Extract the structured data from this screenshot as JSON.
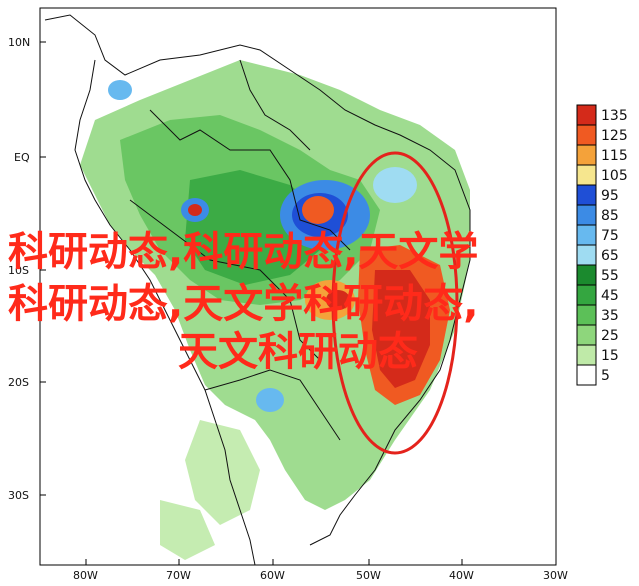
{
  "map": {
    "latitude_labels": [
      "10N",
      "EQ",
      "10S",
      "20S",
      "30S"
    ],
    "longitude_labels": [
      "80W",
      "70W",
      "60W",
      "50W",
      "40W",
      "30W"
    ]
  },
  "colorbar": {
    "levels": [
      "135",
      "125",
      "115",
      "105",
      "95",
      "85",
      "75",
      "65",
      "55",
      "45",
      "35",
      "25",
      "15",
      "5"
    ],
    "colors": [
      "#d42a1a",
      "#f05a22",
      "#f4a23a",
      "#f6e68e",
      "#1f4fd6",
      "#3c8be5",
      "#67b9ef",
      "#9fdcf2",
      "#1b8a2e",
      "#34a640",
      "#5cc058",
      "#8ed67c",
      "#bfeaa8",
      "#ffffff"
    ]
  },
  "overlay": {
    "line1": "科研动态,科研动态,天文学",
    "line2": "科研动态,天文学科研动态,",
    "line3": "天文科研动态",
    "color": "#ff2a1a"
  }
}
